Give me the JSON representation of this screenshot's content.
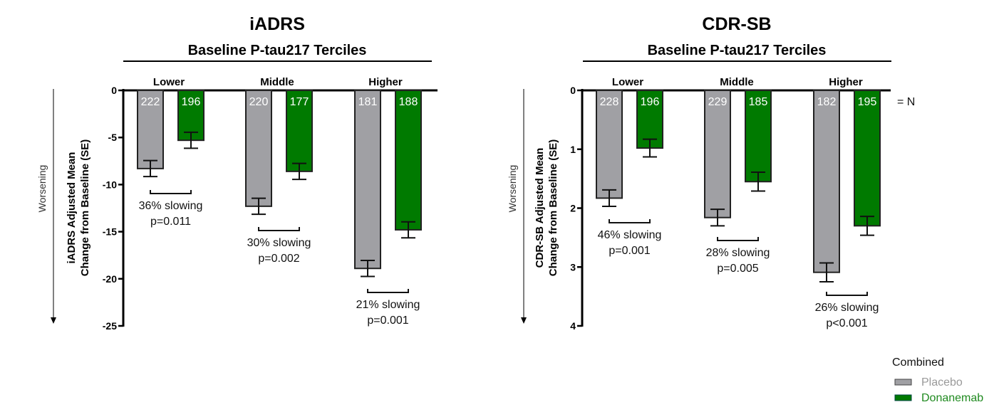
{
  "chart_data": [
    {
      "type": "bar",
      "title": "iADRS",
      "subtitle": "Baseline P-tau217 Terciles",
      "ylabel_lines": [
        "iADRS Adjusted Mean",
        "Change from Baseline (SE)"
      ],
      "direction_label": "Worsening",
      "categories": [
        "Lower",
        "Middle",
        "Higher"
      ],
      "ylim": [
        0,
        -25
      ],
      "yticks": [
        0,
        -5,
        -10,
        -15,
        -20,
        -25
      ],
      "ytick_labels": [
        "0",
        "-5",
        "-10",
        "-15",
        "-20",
        "-25"
      ],
      "series": [
        {
          "name": "Placebo",
          "values": [
            -8.3,
            -12.3,
            -18.9
          ],
          "se": [
            0.85,
            0.85,
            0.85
          ],
          "n": [
            "222",
            "220",
            "181"
          ]
        },
        {
          "name": "Donanemab",
          "values": [
            -5.3,
            -8.6,
            -14.8
          ],
          "se": [
            0.85,
            0.85,
            0.85
          ],
          "n": [
            "196",
            "177",
            "188"
          ]
        }
      ],
      "annotations": [
        {
          "category": "Lower",
          "lines": [
            "36% slowing",
            "p=0.011"
          ]
        },
        {
          "category": "Middle",
          "lines": [
            "30% slowing",
            "p=0.002"
          ]
        },
        {
          "category": "Higher",
          "lines": [
            "21% slowing",
            "p=0.001"
          ]
        }
      ]
    },
    {
      "type": "bar",
      "title": "CDR-SB",
      "subtitle": "Baseline P-tau217 Terciles",
      "ylabel_lines": [
        "CDR-SB Adjusted Mean",
        "Change from Baseline (SE)"
      ],
      "direction_label": "Worsening",
      "categories": [
        "Lower",
        "Middle",
        "Higher"
      ],
      "ylim": [
        0,
        4
      ],
      "yticks": [
        0,
        1,
        2,
        3,
        4
      ],
      "ytick_labels": [
        "0",
        "1",
        "2",
        "3",
        "4"
      ],
      "n_suffix": "= N",
      "series": [
        {
          "name": "Placebo",
          "values": [
            1.83,
            2.16,
            3.09
          ],
          "se": [
            0.14,
            0.14,
            0.16
          ],
          "n": [
            "228",
            "229",
            "182"
          ]
        },
        {
          "name": "Donanemab",
          "values": [
            0.98,
            1.55,
            2.3
          ],
          "se": [
            0.15,
            0.16,
            0.16
          ],
          "n": [
            "196",
            "185",
            "195"
          ]
        }
      ],
      "annotations": [
        {
          "category": "Lower",
          "lines": [
            "46% slowing",
            "p=0.001"
          ]
        },
        {
          "category": "Middle",
          "lines": [
            "28% slowing",
            "p=0.005"
          ]
        },
        {
          "category": "Higher",
          "lines": [
            "26% slowing",
            "p<0.001"
          ]
        }
      ]
    }
  ],
  "legend": {
    "title": "Combined",
    "items": [
      {
        "label": "Placebo",
        "color": "#a0a0a4"
      },
      {
        "label": "Donanemab",
        "color": "#007a00"
      }
    ]
  },
  "colors": {
    "placebo": "#a0a0a4",
    "donanemab": "#007a00",
    "placebo_text": "#9a9a9a",
    "donanemab_text": "#1f8a1f"
  }
}
